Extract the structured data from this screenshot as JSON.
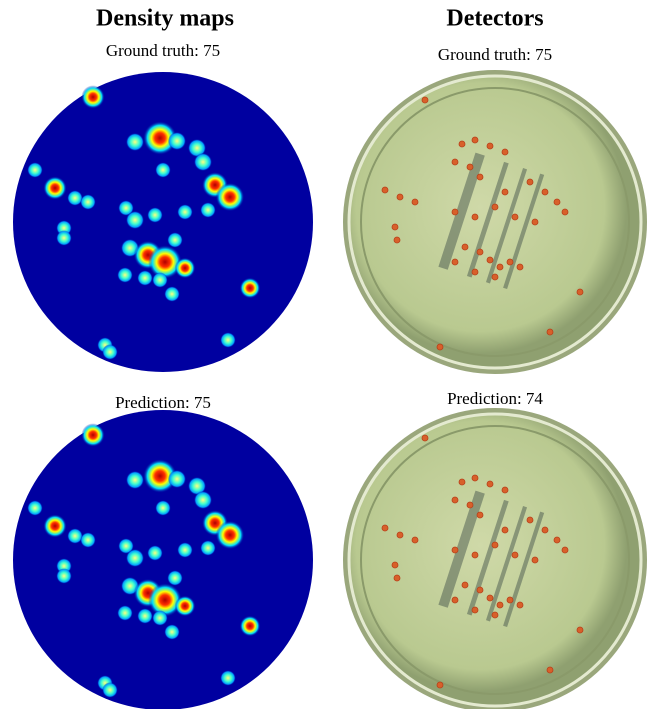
{
  "columns": [
    {
      "title": "Density maps"
    },
    {
      "title": "Detectors"
    }
  ],
  "panels": [
    {
      "label": "Ground truth: 75"
    },
    {
      "label": "Ground truth: 75"
    },
    {
      "label": "Prediction: 75"
    },
    {
      "label": "Prediction: 74"
    }
  ]
}
